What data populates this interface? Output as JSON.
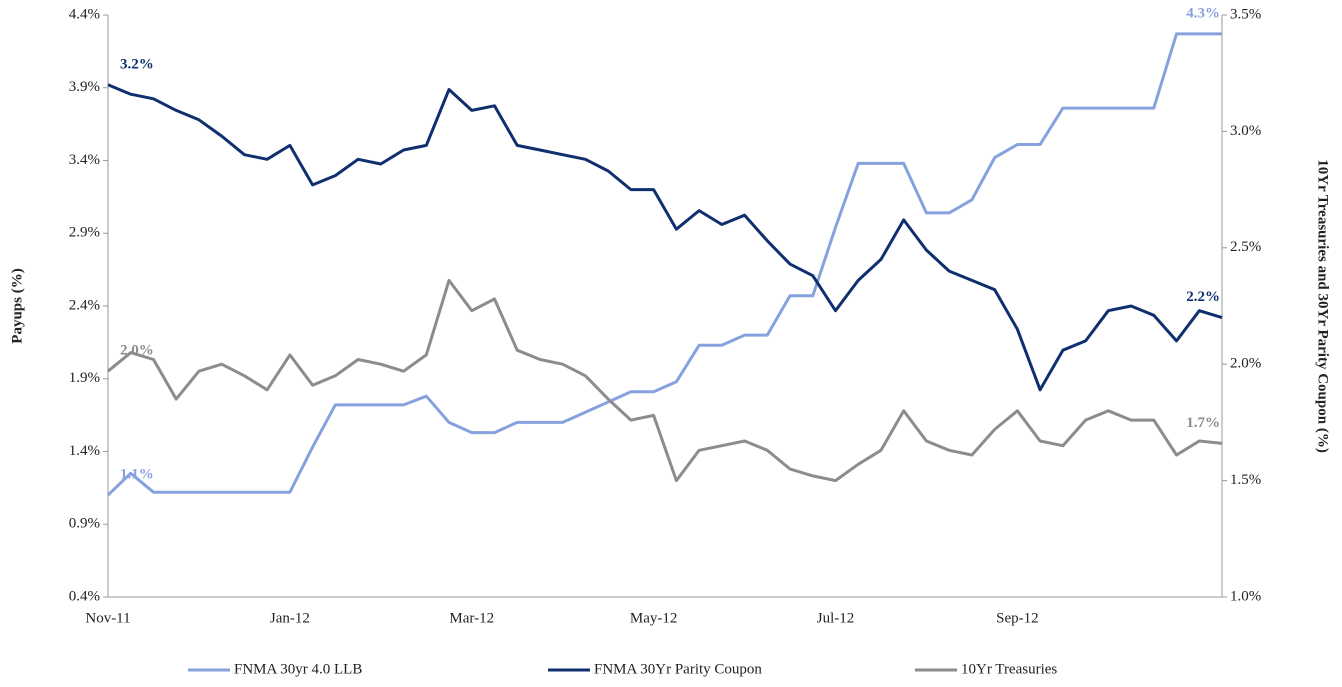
{
  "chart_data": {
    "type": "line",
    "y_label": "Payups (%)",
    "y2_label": "10Yr Treasuries and 30Yr Parity Coupon (%)",
    "categories": [
      "Nov-11",
      null,
      null,
      null,
      null,
      null,
      null,
      null,
      "Jan-12",
      null,
      null,
      null,
      null,
      null,
      null,
      null,
      "Mar-12",
      null,
      null,
      null,
      null,
      null,
      null,
      null,
      "May-12",
      null,
      null,
      null,
      null,
      null,
      null,
      null,
      "Jul-12",
      null,
      null,
      null,
      null,
      null,
      null,
      null,
      "Sep-12",
      null,
      null,
      null,
      null,
      null,
      null,
      null,
      null,
      null
    ],
    "ylim": [
      0.4,
      4.4
    ],
    "yticks": [
      {
        "value": 0.4,
        "label": "0.4%"
      },
      {
        "value": 0.9,
        "label": "0.9%"
      },
      {
        "value": 1.4,
        "label": "1.4%"
      },
      {
        "value": 1.9,
        "label": "1.9%"
      },
      {
        "value": 2.4,
        "label": "2.4%"
      },
      {
        "value": 2.9,
        "label": "2.9%"
      },
      {
        "value": 3.4,
        "label": "3.4%"
      },
      {
        "value": 3.9,
        "label": "3.9%"
      },
      {
        "value": 4.4,
        "label": "4.4%"
      }
    ],
    "y2lim": [
      1.0,
      3.5
    ],
    "y2ticks": [
      {
        "value": 1.0,
        "label": "1.0%"
      },
      {
        "value": 1.5,
        "label": "1.5%"
      },
      {
        "value": 2.0,
        "label": "2.0%"
      },
      {
        "value": 2.5,
        "label": "2.5%"
      },
      {
        "value": 3.0,
        "label": "3.0%"
      },
      {
        "value": 3.5,
        "label": "3.5%"
      }
    ],
    "grid": false,
    "legend": "bottom",
    "series": [
      {
        "name": "FNMA 30yr 4.0 LLB",
        "color": "#86a2de",
        "values": [
          1.1,
          1.25,
          1.12,
          1.12,
          1.12,
          1.12,
          1.12,
          1.12,
          1.12,
          1.43,
          1.72,
          1.72,
          1.72,
          1.72,
          1.78,
          1.6,
          1.53,
          1.53,
          1.6,
          1.6,
          1.6,
          1.67,
          1.74,
          1.81,
          1.81,
          1.88,
          2.13,
          2.13,
          2.2,
          2.2,
          2.47,
          2.47,
          2.94,
          3.38,
          3.38,
          3.38,
          3.04,
          3.04,
          3.13,
          3.42,
          3.51,
          3.51,
          3.76,
          3.76,
          3.76,
          3.76,
          3.76,
          4.27,
          4.27,
          4.27
        ],
        "value_labels": [
          "1.1%",
          null,
          null,
          null,
          null,
          null,
          null,
          null,
          null,
          null,
          null,
          null,
          null,
          null,
          null,
          null,
          null,
          null,
          null,
          null,
          null,
          null,
          null,
          null,
          null,
          null,
          null,
          null,
          null,
          null,
          null,
          null,
          null,
          null,
          null,
          null,
          null,
          null,
          null,
          null,
          null,
          null,
          null,
          null,
          null,
          null,
          null,
          null,
          null,
          "4.3%"
        ]
      },
      {
        "name": "FNMA 30Yr Parity Coupon",
        "color": "#0f2f6e",
        "axis": "y2",
        "values": [
          3.2,
          3.16,
          3.14,
          3.09,
          3.05,
          2.98,
          2.9,
          2.88,
          2.94,
          2.77,
          2.81,
          2.88,
          2.86,
          2.92,
          2.94,
          3.18,
          3.09,
          3.11,
          2.94,
          2.92,
          2.9,
          2.88,
          2.83,
          2.75,
          2.75,
          2.58,
          2.66,
          2.6,
          2.64,
          2.53,
          2.43,
          2.38,
          2.23,
          2.36,
          2.45,
          2.62,
          2.49,
          2.4,
          2.36,
          2.32,
          2.15,
          1.89,
          2.06,
          2.1,
          2.23,
          2.25,
          2.21,
          2.1,
          2.23,
          2.2
        ],
        "value_labels": [
          "3.2%",
          null,
          null,
          null,
          null,
          null,
          null,
          null,
          null,
          null,
          null,
          null,
          null,
          null,
          null,
          null,
          null,
          null,
          null,
          null,
          null,
          null,
          null,
          null,
          null,
          null,
          null,
          null,
          null,
          null,
          null,
          null,
          null,
          null,
          null,
          null,
          null,
          null,
          null,
          null,
          null,
          null,
          null,
          null,
          null,
          null,
          null,
          null,
          null,
          "2.2%"
        ]
      },
      {
        "name": "10Yr Treasuries",
        "color": "#8c8c8c",
        "axis": "y2",
        "values": [
          1.97,
          2.05,
          2.02,
          1.85,
          1.97,
          2.0,
          1.95,
          1.89,
          2.04,
          1.91,
          1.95,
          2.02,
          2.0,
          1.97,
          2.04,
          2.36,
          2.23,
          2.28,
          2.06,
          2.02,
          2.0,
          1.95,
          1.85,
          1.76,
          1.78,
          1.5,
          1.63,
          1.65,
          1.67,
          1.63,
          1.55,
          1.52,
          1.5,
          1.57,
          1.63,
          1.8,
          1.67,
          1.63,
          1.61,
          1.72,
          1.8,
          1.67,
          1.65,
          1.76,
          1.8,
          1.76,
          1.76,
          1.61,
          1.67,
          1.66
        ],
        "value_labels": [
          "2.0%",
          null,
          null,
          null,
          null,
          null,
          null,
          null,
          null,
          null,
          null,
          null,
          null,
          null,
          null,
          null,
          null,
          null,
          null,
          null,
          null,
          null,
          null,
          null,
          null,
          null,
          null,
          null,
          null,
          null,
          null,
          null,
          null,
          null,
          null,
          null,
          null,
          null,
          null,
          null,
          null,
          null,
          null,
          null,
          null,
          null,
          null,
          null,
          null,
          "1.7%"
        ]
      }
    ]
  }
}
